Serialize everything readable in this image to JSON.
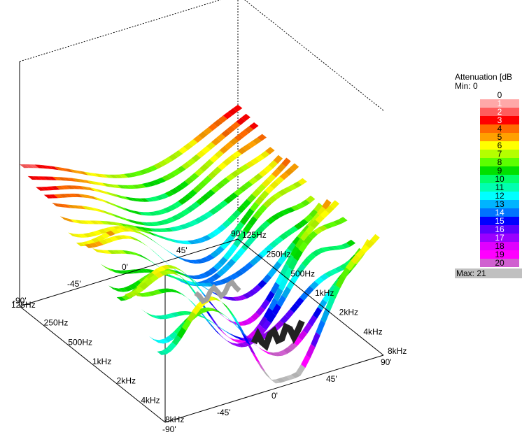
{
  "chart_data": {
    "type": "surface-3d",
    "legend": {
      "title": "Attenuation [dB",
      "min_label": "Min:",
      "min_value": "0",
      "max_label": "Max:",
      "max_value": "21",
      "levels": [
        {
          "label": "0",
          "color": "#ffffff"
        },
        {
          "label": "1",
          "color": "#ffa8a8"
        },
        {
          "label": "2",
          "color": "#ff5c5c"
        },
        {
          "label": "3",
          "color": "#ff0000"
        },
        {
          "label": "4",
          "color": "#ff6a00"
        },
        {
          "label": "5",
          "color": "#ffa000"
        },
        {
          "label": "6",
          "color": "#ffff00"
        },
        {
          "label": "7",
          "color": "#b4ff00"
        },
        {
          "label": "8",
          "color": "#5cff00"
        },
        {
          "label": "9",
          "color": "#00e000"
        },
        {
          "label": "10",
          "color": "#00ff6a"
        },
        {
          "label": "11",
          "color": "#00ffb0"
        },
        {
          "label": "12",
          "color": "#00ffff"
        },
        {
          "label": "13",
          "color": "#00b4ff"
        },
        {
          "label": "14",
          "color": "#0074ff"
        },
        {
          "label": "15",
          "color": "#0000ff"
        },
        {
          "label": "16",
          "color": "#5a00ff"
        },
        {
          "label": "17",
          "color": "#9a00ff"
        },
        {
          "label": "18",
          "color": "#e000ff"
        },
        {
          "label": "19",
          "color": "#ff00ff"
        },
        {
          "label": "20",
          "color": "#d060d0"
        }
      ],
      "max_color": "#c0c0c0"
    },
    "frequency_axis": [
      "125Hz",
      "250Hz",
      "500Hz",
      "1kHz",
      "2kHz",
      "4kHz",
      "8kHz"
    ],
    "angle_axis": [
      "-90'",
      "-45'",
      "0'",
      "45'",
      "90'"
    ],
    "front_axis_angles": [
      "-90'",
      "-45'",
      "0'",
      "45'",
      "90'"
    ],
    "note": ""
  }
}
